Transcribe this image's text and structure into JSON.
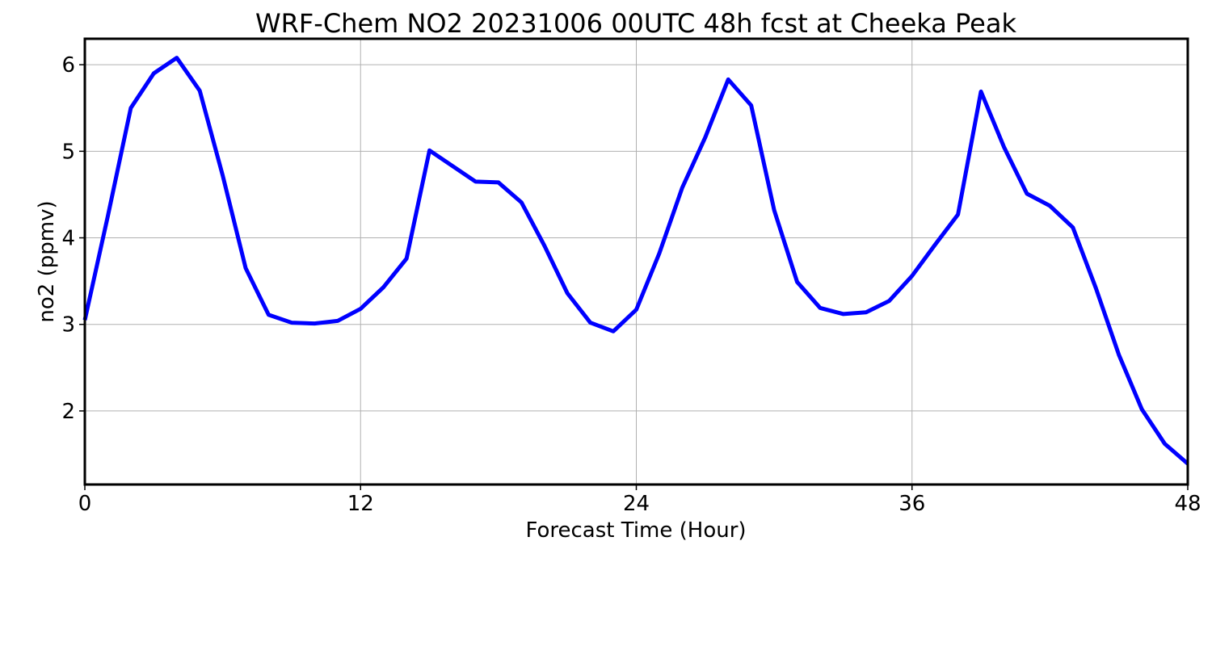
{
  "chart_data": {
    "type": "line",
    "title": "WRF-Chem NO2  20231006 00UTC 48h fcst at Cheeka Peak",
    "xlabel": "Forecast Time (Hour)",
    "ylabel": "no2  (ppmv)",
    "xlim": [
      0,
      48
    ],
    "ylim": [
      1.15,
      6.3
    ],
    "xticks": [
      0,
      12,
      24,
      36,
      48
    ],
    "xtick_labels": [
      "0",
      "12",
      "24",
      "36",
      "48"
    ],
    "yticks": [
      2,
      3,
      4,
      5,
      6
    ],
    "ytick_labels": [
      "2",
      "3",
      "4",
      "5",
      "6"
    ],
    "grid": true,
    "legend": "none",
    "line_color": "#0000ff",
    "x": [
      0,
      1,
      2,
      3,
      4,
      5,
      6,
      7,
      8,
      9,
      10,
      11,
      12,
      13,
      14,
      15,
      16,
      17,
      18,
      19,
      20,
      21,
      22,
      23,
      24,
      25,
      26,
      27,
      28,
      29,
      30,
      31,
      32,
      33,
      34,
      35,
      36,
      37,
      38,
      39,
      40,
      41,
      42,
      43,
      44,
      45,
      46,
      47,
      48
    ],
    "series": [
      {
        "values": [
          3.05,
          4.25,
          5.5,
          5.9,
          6.08,
          5.7,
          4.72,
          3.65,
          3.11,
          3.02,
          3.01,
          3.04,
          3.18,
          3.43,
          3.76,
          5.01,
          4.83,
          4.65,
          4.64,
          4.41,
          3.91,
          3.36,
          3.02,
          2.92,
          3.17,
          3.82,
          4.58,
          5.16,
          5.83,
          5.53,
          4.32,
          3.49,
          3.19,
          3.12,
          3.14,
          3.27,
          3.56,
          3.92,
          4.27,
          5.69,
          5.05,
          4.51,
          4.37,
          4.12,
          3.42,
          2.65,
          2.02,
          1.62,
          1.39
        ]
      }
    ]
  }
}
